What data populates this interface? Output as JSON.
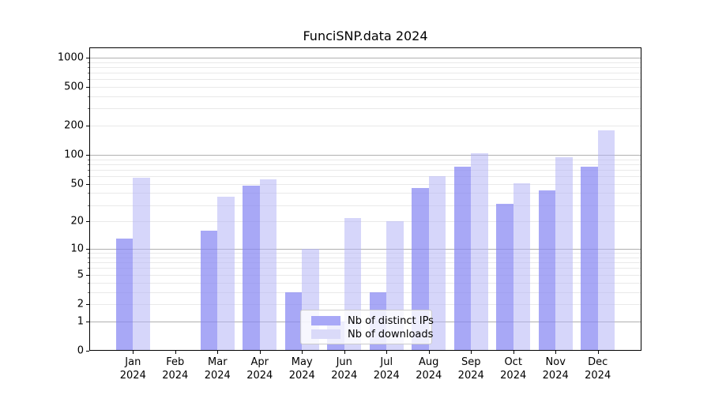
{
  "chart_data": {
    "type": "bar",
    "title": "FunciSNP.data 2024",
    "categories": [
      {
        "month": "Jan",
        "year": "2024"
      },
      {
        "month": "Feb",
        "year": "2024"
      },
      {
        "month": "Mar",
        "year": "2024"
      },
      {
        "month": "Apr",
        "year": "2024"
      },
      {
        "month": "May",
        "year": "2024"
      },
      {
        "month": "Jun",
        "year": "2024"
      },
      {
        "month": "Jul",
        "year": "2024"
      },
      {
        "month": "Aug",
        "year": "2024"
      },
      {
        "month": "Sep",
        "year": "2024"
      },
      {
        "month": "Oct",
        "year": "2024"
      },
      {
        "month": "Nov",
        "year": "2024"
      },
      {
        "month": "Dec",
        "year": "2024"
      }
    ],
    "series": [
      {
        "name": "Nb of distinct IPs",
        "fill": "rgba(134,134,243,0.72)",
        "swatch": "#a8a8f7",
        "values": [
          13,
          0,
          16,
          48,
          3,
          1,
          3,
          45,
          75,
          31,
          43,
          76
        ]
      },
      {
        "name": "Nb of downloads",
        "fill": "rgba(177,177,245,0.53)",
        "swatch": "#dadaf9",
        "values": [
          58,
          0,
          37,
          56,
          10,
          22,
          20,
          60,
          103,
          51,
          94,
          178
        ]
      }
    ],
    "y_axis": {
      "scale": "log10(1+v)",
      "tick_values": [
        0,
        1,
        2,
        5,
        10,
        20,
        50,
        100,
        200,
        500,
        1000
      ],
      "grid_major": [
        1,
        10,
        100,
        1000
      ],
      "grid_minor": [
        2,
        3,
        4,
        5,
        6,
        7,
        8,
        9,
        20,
        30,
        40,
        50,
        60,
        70,
        80,
        90,
        200,
        300,
        400,
        500,
        600,
        700,
        800,
        900
      ]
    },
    "legend": {
      "position": "bottom-center"
    },
    "grid": true
  },
  "colors": {
    "grid_major": "#b0b0b0",
    "grid_minor": "#e9e9e9",
    "frame": "#000000",
    "legend_border": "#cccccc"
  }
}
